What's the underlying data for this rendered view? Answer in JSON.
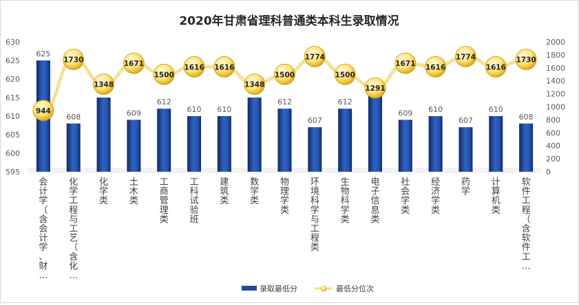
{
  "chart_data": {
    "type": "bar",
    "title": "2020年甘肃省理科普通类本科生录取情况",
    "categories": [
      "会计学（含会计学、财…",
      "化学工程与工艺（含化…",
      "化学类",
      "土木类",
      "工商管理类",
      "工科试验班",
      "建筑类",
      "数学类",
      "物理学类",
      "环境科学与工程类",
      "生物科学类",
      "电子信息类",
      "社会学类",
      "经济学类",
      "药学",
      "计算机类",
      "软件工程（含软件工…"
    ],
    "series": [
      {
        "name": "录取最低分",
        "type": "bar",
        "axis": "left",
        "values": [
          625,
          608,
          615,
          609,
          612,
          610,
          610,
          615,
          612,
          607,
          612,
          616,
          609,
          610,
          607,
          610,
          608
        ]
      },
      {
        "name": "最低分位次",
        "type": "line",
        "axis": "right",
        "values": [
          944,
          1730,
          1348,
          1671,
          1500,
          1616,
          1616,
          1348,
          1500,
          1774,
          1500,
          1291,
          1671,
          1616,
          1774,
          1616,
          1730
        ]
      }
    ],
    "ylim_left": [
      595,
      630
    ],
    "yticks_left": [
      595,
      600,
      605,
      610,
      615,
      620,
      625,
      630
    ],
    "ylim_right": [
      0,
      2000
    ],
    "yticks_right": [
      0,
      200,
      400,
      600,
      800,
      1000,
      1200,
      1400,
      1600,
      1800,
      2000
    ],
    "legend_position": "bottom",
    "grid": false,
    "colors": {
      "bar_dark": "#0f2a66",
      "bar_mid": "#2554b0",
      "bar_light": "#3f74d0",
      "line": "#f7e08a",
      "marker_light": "#fff4a8",
      "marker_dark": "#d9a100",
      "marker_label": "#222222",
      "axis_text": "#595959",
      "title": "#262626"
    }
  }
}
